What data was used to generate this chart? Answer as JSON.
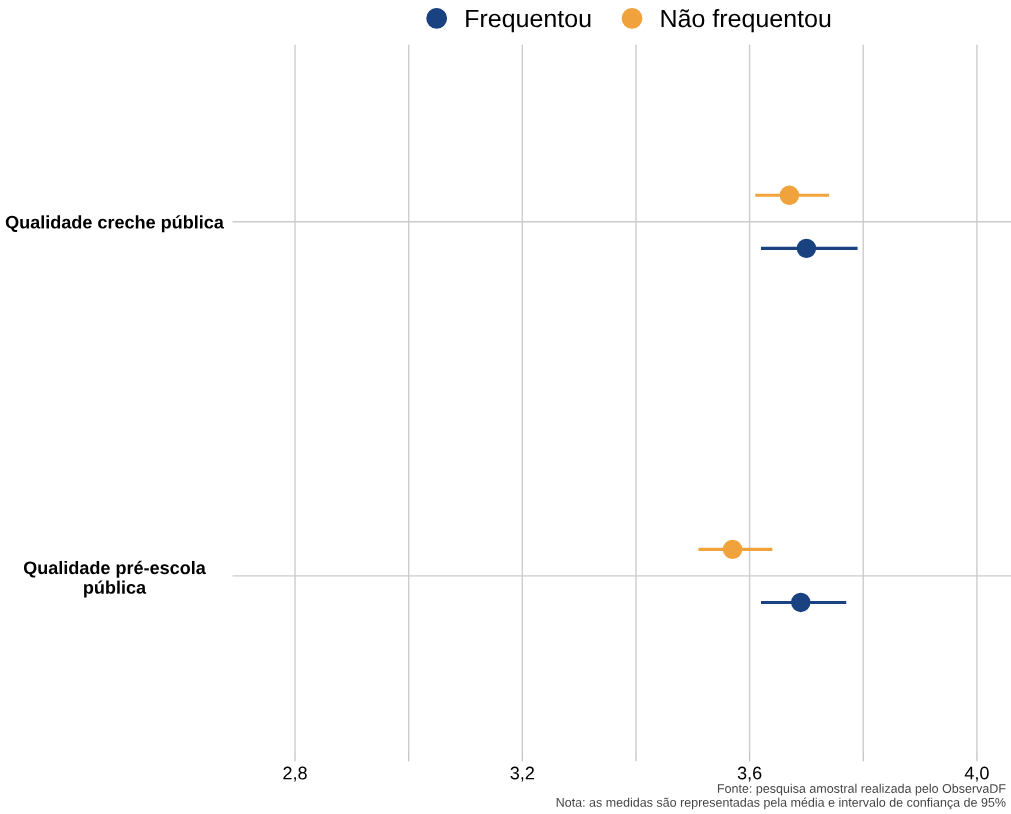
{
  "chart_data": {
    "type": "scatter",
    "orientation": "horizontal",
    "categories": [
      "Qualidade creche pública",
      "Qualidade pré-escola\npública"
    ],
    "series": [
      {
        "name": "Frequentou",
        "color": "#1a4280",
        "values": [
          3.7,
          3.69
        ],
        "errors": [
          [
            3.62,
            3.79
          ],
          [
            3.62,
            3.77
          ]
        ]
      },
      {
        "name": "Não frequentou",
        "color": "#f0a33c",
        "values": [
          3.67,
          3.57
        ],
        "errors": [
          [
            3.61,
            3.74
          ],
          [
            3.51,
            3.64
          ]
        ]
      }
    ],
    "xlim": [
      2.69,
      4.06
    ],
    "xticks": [
      {
        "value": 2.8,
        "label": "2,8"
      },
      {
        "value": 3.0,
        "label": null
      },
      {
        "value": 3.2,
        "label": "3,2"
      },
      {
        "value": 3.4,
        "label": null
      },
      {
        "value": 3.6,
        "label": "3,6"
      },
      {
        "value": 3.8,
        "label": null
      },
      {
        "value": 4.0,
        "label": "4,0"
      }
    ],
    "grid": true,
    "legend": "top",
    "marker": "circle",
    "annotations": [
      "Fonte: pesquisa amostral realizada pelo ObservaDF",
      "Nota: as medidas são representadas pela média e intervalo de confiança de 95%"
    ]
  }
}
